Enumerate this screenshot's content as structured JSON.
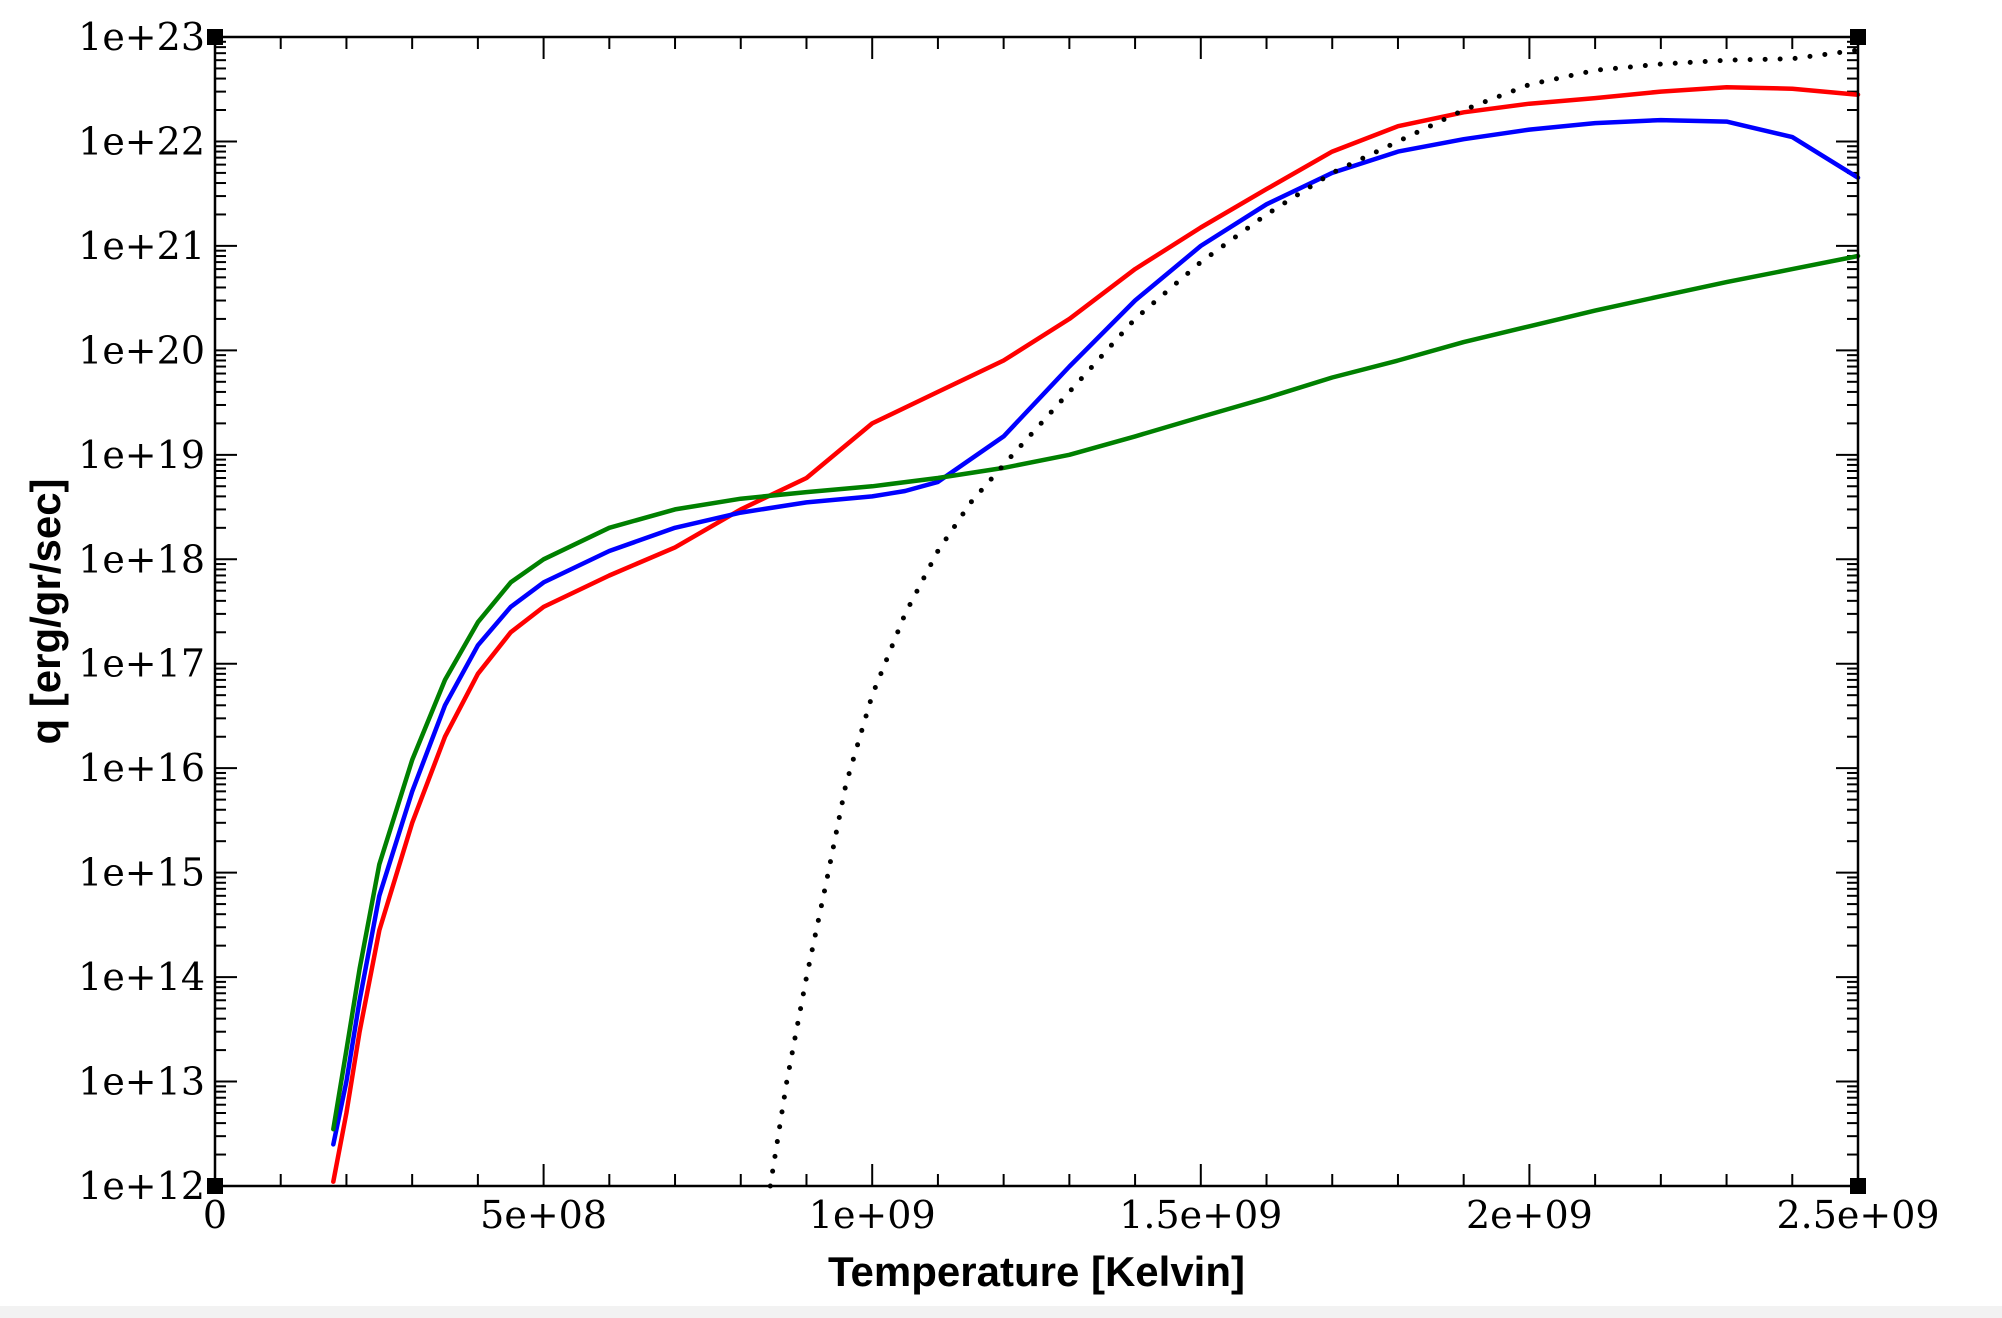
{
  "chart_data": {
    "type": "line",
    "xlabel": "Temperature [Kelvin]",
    "ylabel": "q [erg/gr/sec]",
    "xlim": [
      0,
      2500000000
    ],
    "ylim": [
      1000000000000.0,
      1e+23
    ],
    "yscale": "log",
    "grid": false,
    "legend": "none",
    "x_tick_labels": [
      "0",
      "5e+08",
      "1e+09",
      "1.5e+09",
      "2e+09",
      "2.5e+09"
    ],
    "y_tick_labels": [
      "1e+12",
      "1e+13",
      "1e+14",
      "1e+15",
      "1e+16",
      "1e+17",
      "1e+18",
      "1e+19",
      "1e+20",
      "1e+21",
      "1e+22",
      "1e+23"
    ],
    "series": [
      {
        "color": "#ff0000",
        "style": "solid",
        "points": [
          [
            180000000,
            1100000000000.0
          ],
          [
            200000000,
            5000000000000.0
          ],
          [
            220000000,
            30000000000000.0
          ],
          [
            250000000,
            280000000000000.0
          ],
          [
            300000000,
            3000000000000000.0
          ],
          [
            350000000,
            2e+16
          ],
          [
            400000000,
            8e+16
          ],
          [
            450000000,
            2e+17
          ],
          [
            500000000,
            3.5e+17
          ],
          [
            600000000,
            7e+17
          ],
          [
            700000000,
            1.3e+18
          ],
          [
            800000000,
            3e+18
          ],
          [
            900000000,
            6e+18
          ],
          [
            1000000000,
            2e+19
          ],
          [
            1100000000,
            4e+19
          ],
          [
            1200000000,
            8e+19
          ],
          [
            1300000000,
            2e+20
          ],
          [
            1400000000,
            6e+20
          ],
          [
            1500000000,
            1.5e+21
          ],
          [
            1600000000,
            3.5e+21
          ],
          [
            1700000000,
            8e+21
          ],
          [
            1800000000,
            1.4e+22
          ],
          [
            1900000000,
            1.9e+22
          ],
          [
            2000000000,
            2.3e+22
          ],
          [
            2100000000,
            2.6e+22
          ],
          [
            2200000000,
            3e+22
          ],
          [
            2300000000,
            3.3e+22
          ],
          [
            2400000000,
            3.2e+22
          ],
          [
            2500000000,
            2.8e+22
          ]
        ]
      },
      {
        "color": "#0000ff",
        "style": "solid",
        "points": [
          [
            180000000,
            2500000000000.0
          ],
          [
            200000000,
            10000000000000.0
          ],
          [
            220000000,
            60000000000000.0
          ],
          [
            250000000,
            600000000000000.0
          ],
          [
            300000000,
            6000000000000000.0
          ],
          [
            350000000,
            4e+16
          ],
          [
            400000000,
            1.5e+17
          ],
          [
            450000000,
            3.5e+17
          ],
          [
            500000000,
            6e+17
          ],
          [
            600000000,
            1.2e+18
          ],
          [
            700000000,
            2e+18
          ],
          [
            800000000,
            2.8e+18
          ],
          [
            900000000,
            3.5e+18
          ],
          [
            1000000000,
            4e+18
          ],
          [
            1050000000,
            4.5e+18
          ],
          [
            1100000000,
            5.5e+18
          ],
          [
            1200000000,
            1.5e+19
          ],
          [
            1300000000,
            7e+19
          ],
          [
            1400000000,
            3e+20
          ],
          [
            1500000000,
            1e+21
          ],
          [
            1600000000,
            2.5e+21
          ],
          [
            1700000000,
            5e+21
          ],
          [
            1800000000,
            8e+21
          ],
          [
            1900000000,
            1.05e+22
          ],
          [
            2000000000,
            1.3e+22
          ],
          [
            2100000000,
            1.5e+22
          ],
          [
            2200000000,
            1.6e+22
          ],
          [
            2300000000,
            1.55e+22
          ],
          [
            2400000000,
            1.1e+22
          ],
          [
            2500000000,
            4.5e+21
          ]
        ]
      },
      {
        "color": "#008000",
        "style": "solid",
        "points": [
          [
            180000000,
            3500000000000.0
          ],
          [
            200000000,
            20000000000000.0
          ],
          [
            220000000,
            120000000000000.0
          ],
          [
            250000000,
            1200000000000000.0
          ],
          [
            300000000,
            1.2e+16
          ],
          [
            350000000,
            7e+16
          ],
          [
            400000000,
            2.5e+17
          ],
          [
            450000000,
            6e+17
          ],
          [
            500000000,
            1e+18
          ],
          [
            600000000,
            2e+18
          ],
          [
            700000000,
            3e+18
          ],
          [
            800000000,
            3.8e+18
          ],
          [
            900000000,
            4.4e+18
          ],
          [
            1000000000,
            5e+18
          ],
          [
            1100000000,
            6e+18
          ],
          [
            1200000000,
            7.5e+18
          ],
          [
            1300000000,
            1e+19
          ],
          [
            1400000000,
            1.5e+19
          ],
          [
            1500000000,
            2.3e+19
          ],
          [
            1600000000,
            3.5e+19
          ],
          [
            1700000000,
            5.5e+19
          ],
          [
            1800000000,
            8e+19
          ],
          [
            1900000000,
            1.2e+20
          ],
          [
            2000000000,
            1.7e+20
          ],
          [
            2100000000,
            2.4e+20
          ],
          [
            2200000000,
            3.3e+20
          ],
          [
            2300000000,
            4.5e+20
          ],
          [
            2400000000,
            6e+20
          ],
          [
            2500000000,
            8e+20
          ]
        ]
      },
      {
        "color": "#000000",
        "style": "dotted",
        "points": [
          [
            845000000,
            1000000000000.0
          ],
          [
            870000000,
            10000000000000.0
          ],
          [
            900000000,
            100000000000000.0
          ],
          [
            930000000,
            800000000000000.0
          ],
          [
            960000000,
            7000000000000000.0
          ],
          [
            1000000000,
            5e+16
          ],
          [
            1050000000,
            3e+17
          ],
          [
            1100000000,
            1.2e+18
          ],
          [
            1150000000,
            3.5e+18
          ],
          [
            1200000000,
            8e+18
          ],
          [
            1300000000,
            4e+19
          ],
          [
            1400000000,
            2e+20
          ],
          [
            1500000000,
            7e+20
          ],
          [
            1600000000,
            2e+21
          ],
          [
            1700000000,
            5e+21
          ],
          [
            1800000000,
            1e+22
          ],
          [
            1900000000,
            2e+22
          ],
          [
            2000000000,
            3.5e+22
          ],
          [
            2100000000,
            4.8e+22
          ],
          [
            2200000000,
            5.5e+22
          ],
          [
            2300000000,
            6e+22
          ],
          [
            2400000000,
            6.2e+22
          ],
          [
            2500000000,
            7.5e+22
          ]
        ]
      }
    ]
  }
}
